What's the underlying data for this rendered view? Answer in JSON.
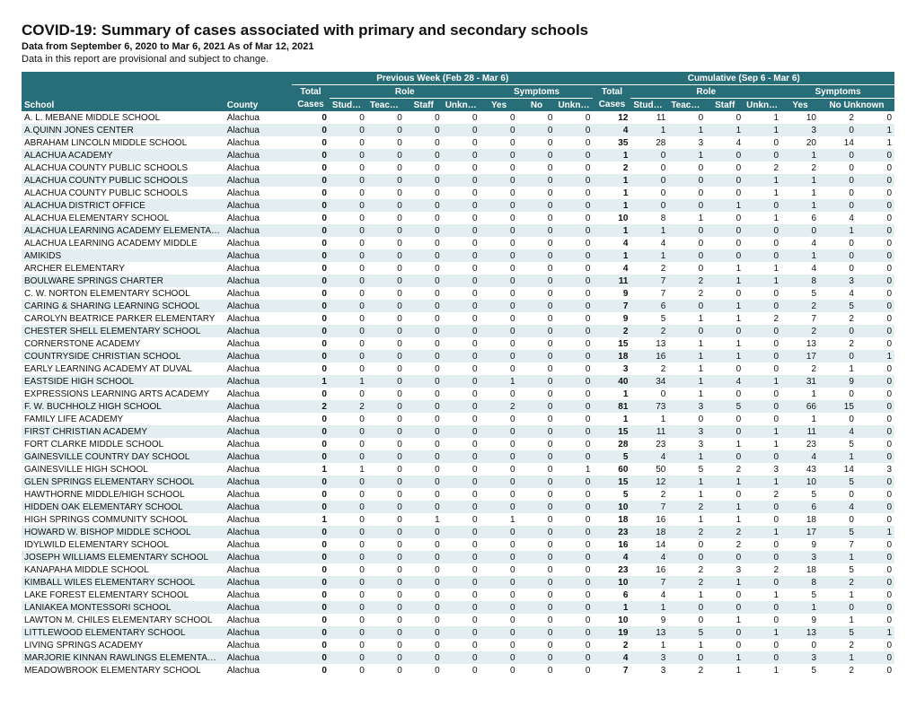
{
  "title": "COVID-19: Summary of cases associated with primary and secondary schools",
  "subtitle_bold": "Data from September 6, 2020 to Mar 6, 2021 As of Mar 12, 2021",
  "subtitle_plain": "Data in this report are provisional and subject to change.",
  "colors": {
    "header_bg": "#276e78",
    "header_fg": "#ffffff",
    "row_even": "#e3eef0",
    "row_odd": "#ffffff"
  },
  "header": {
    "school": "School",
    "county": "County",
    "group_prev": "Previous Week (Feb 28 - Mar 6)",
    "group_cum": "Cumulative (Sep 6 - Mar 6)",
    "total": "Total",
    "role": "Role",
    "symptoms": "Symptoms",
    "cases": "Cases",
    "students": "Students",
    "teachers": "Teachers",
    "staff": "Staff",
    "unknown": "Unknown",
    "yes": "Yes",
    "no": "No",
    "no_unknown": "No Unknown"
  },
  "rows": [
    {
      "s": "A. L. MEBANE MIDDLE SCHOOL",
      "c": "Alachua",
      "p": [
        0,
        0,
        0,
        0,
        0,
        0,
        0,
        0
      ],
      "u": [
        12,
        11,
        0,
        0,
        1,
        10,
        2,
        0
      ]
    },
    {
      "s": "A.QUINN JONES CENTER",
      "c": "Alachua",
      "p": [
        0,
        0,
        0,
        0,
        0,
        0,
        0,
        0
      ],
      "u": [
        4,
        1,
        1,
        1,
        1,
        3,
        0,
        1
      ]
    },
    {
      "s": "ABRAHAM LINCOLN MIDDLE SCHOOL",
      "c": "Alachua",
      "p": [
        0,
        0,
        0,
        0,
        0,
        0,
        0,
        0
      ],
      "u": [
        35,
        28,
        3,
        4,
        0,
        20,
        14,
        1
      ]
    },
    {
      "s": "ALACHUA ACADEMY",
      "c": "Alachua",
      "p": [
        0,
        0,
        0,
        0,
        0,
        0,
        0,
        0
      ],
      "u": [
        1,
        0,
        1,
        0,
        0,
        1,
        0,
        0
      ]
    },
    {
      "s": "ALACHUA COUNTY PUBLIC SCHOOLS",
      "c": "Alachua",
      "p": [
        0,
        0,
        0,
        0,
        0,
        0,
        0,
        0
      ],
      "u": [
        2,
        0,
        0,
        0,
        2,
        2,
        0,
        0
      ]
    },
    {
      "s": "ALACHUA COUNTY PUBLIC SCHOOLS",
      "c": "Alachua",
      "p": [
        0,
        0,
        0,
        0,
        0,
        0,
        0,
        0
      ],
      "u": [
        1,
        0,
        0,
        0,
        1,
        1,
        0,
        0
      ]
    },
    {
      "s": "ALACHUA COUNTY PUBLIC SCHOOLS",
      "c": "Alachua",
      "p": [
        0,
        0,
        0,
        0,
        0,
        0,
        0,
        0
      ],
      "u": [
        1,
        0,
        0,
        0,
        1,
        1,
        0,
        0
      ]
    },
    {
      "s": "ALACHUA DISTRICT OFFICE",
      "c": "Alachua",
      "p": [
        0,
        0,
        0,
        0,
        0,
        0,
        0,
        0
      ],
      "u": [
        1,
        0,
        0,
        1,
        0,
        1,
        0,
        0
      ]
    },
    {
      "s": "ALACHUA ELEMENTARY SCHOOL",
      "c": "Alachua",
      "p": [
        0,
        0,
        0,
        0,
        0,
        0,
        0,
        0
      ],
      "u": [
        10,
        8,
        1,
        0,
        1,
        6,
        4,
        0
      ]
    },
    {
      "s": "ALACHUA LEARNING ACADEMY ELEMENTARY",
      "c": "Alachua",
      "p": [
        0,
        0,
        0,
        0,
        0,
        0,
        0,
        0
      ],
      "u": [
        1,
        1,
        0,
        0,
        0,
        0,
        1,
        0
      ]
    },
    {
      "s": "ALACHUA LEARNING ACADEMY MIDDLE",
      "c": "Alachua",
      "p": [
        0,
        0,
        0,
        0,
        0,
        0,
        0,
        0
      ],
      "u": [
        4,
        4,
        0,
        0,
        0,
        4,
        0,
        0
      ]
    },
    {
      "s": "AMIKIDS",
      "c": "Alachua",
      "p": [
        0,
        0,
        0,
        0,
        0,
        0,
        0,
        0
      ],
      "u": [
        1,
        1,
        0,
        0,
        0,
        1,
        0,
        0
      ]
    },
    {
      "s": "ARCHER ELEMENTARY",
      "c": "Alachua",
      "p": [
        0,
        0,
        0,
        0,
        0,
        0,
        0,
        0
      ],
      "u": [
        4,
        2,
        0,
        1,
        1,
        4,
        0,
        0
      ]
    },
    {
      "s": "BOULWARE SPRINGS CHARTER",
      "c": "Alachua",
      "p": [
        0,
        0,
        0,
        0,
        0,
        0,
        0,
        0
      ],
      "u": [
        11,
        7,
        2,
        1,
        1,
        8,
        3,
        0
      ]
    },
    {
      "s": "C. W. NORTON ELEMENTARY SCHOOL",
      "c": "Alachua",
      "p": [
        0,
        0,
        0,
        0,
        0,
        0,
        0,
        0
      ],
      "u": [
        9,
        7,
        2,
        0,
        0,
        5,
        4,
        0
      ]
    },
    {
      "s": "CARING & SHARING LEARNING SCHOOL",
      "c": "Alachua",
      "p": [
        0,
        0,
        0,
        0,
        0,
        0,
        0,
        0
      ],
      "u": [
        7,
        6,
        0,
        1,
        0,
        2,
        5,
        0
      ]
    },
    {
      "s": "CAROLYN BEATRICE PARKER ELEMENTARY",
      "c": "Alachua",
      "p": [
        0,
        0,
        0,
        0,
        0,
        0,
        0,
        0
      ],
      "u": [
        9,
        5,
        1,
        1,
        2,
        7,
        2,
        0
      ]
    },
    {
      "s": "CHESTER SHELL ELEMENTARY SCHOOL",
      "c": "Alachua",
      "p": [
        0,
        0,
        0,
        0,
        0,
        0,
        0,
        0
      ],
      "u": [
        2,
        2,
        0,
        0,
        0,
        2,
        0,
        0
      ]
    },
    {
      "s": "CORNERSTONE ACADEMY",
      "c": "Alachua",
      "p": [
        0,
        0,
        0,
        0,
        0,
        0,
        0,
        0
      ],
      "u": [
        15,
        13,
        1,
        1,
        0,
        13,
        2,
        0
      ]
    },
    {
      "s": "COUNTRYSIDE CHRISTIAN SCHOOL",
      "c": "Alachua",
      "p": [
        0,
        0,
        0,
        0,
        0,
        0,
        0,
        0
      ],
      "u": [
        18,
        16,
        1,
        1,
        0,
        17,
        0,
        1
      ]
    },
    {
      "s": "EARLY LEARNING ACADEMY AT DUVAL",
      "c": "Alachua",
      "p": [
        0,
        0,
        0,
        0,
        0,
        0,
        0,
        0
      ],
      "u": [
        3,
        2,
        1,
        0,
        0,
        2,
        1,
        0
      ]
    },
    {
      "s": "EASTSIDE HIGH SCHOOL",
      "c": "Alachua",
      "p": [
        1,
        1,
        0,
        0,
        0,
        1,
        0,
        0
      ],
      "u": [
        40,
        34,
        1,
        4,
        1,
        31,
        9,
        0
      ]
    },
    {
      "s": "EXPRESSIONS LEARNING ARTS ACADEMY",
      "c": "Alachua",
      "p": [
        0,
        0,
        0,
        0,
        0,
        0,
        0,
        0
      ],
      "u": [
        1,
        0,
        1,
        0,
        0,
        1,
        0,
        0
      ]
    },
    {
      "s": "F. W. BUCHHOLZ HIGH SCHOOL",
      "c": "Alachua",
      "p": [
        2,
        2,
        0,
        0,
        0,
        2,
        0,
        0
      ],
      "u": [
        81,
        73,
        3,
        5,
        0,
        66,
        15,
        0
      ]
    },
    {
      "s": "FAMILY LIFE ACADEMY",
      "c": "Alachua",
      "p": [
        0,
        0,
        0,
        0,
        0,
        0,
        0,
        0
      ],
      "u": [
        1,
        1,
        0,
        0,
        0,
        1,
        0,
        0
      ]
    },
    {
      "s": "FIRST CHRISTIAN ACADEMY",
      "c": "Alachua",
      "p": [
        0,
        0,
        0,
        0,
        0,
        0,
        0,
        0
      ],
      "u": [
        15,
        11,
        3,
        0,
        1,
        11,
        4,
        0
      ]
    },
    {
      "s": "FORT CLARKE MIDDLE SCHOOL",
      "c": "Alachua",
      "p": [
        0,
        0,
        0,
        0,
        0,
        0,
        0,
        0
      ],
      "u": [
        28,
        23,
        3,
        1,
        1,
        23,
        5,
        0
      ]
    },
    {
      "s": "GAINESVILLE COUNTRY DAY SCHOOL",
      "c": "Alachua",
      "p": [
        0,
        0,
        0,
        0,
        0,
        0,
        0,
        0
      ],
      "u": [
        5,
        4,
        1,
        0,
        0,
        4,
        1,
        0
      ]
    },
    {
      "s": "GAINESVILLE HIGH SCHOOL",
      "c": "Alachua",
      "p": [
        1,
        1,
        0,
        0,
        0,
        0,
        0,
        1
      ],
      "u": [
        60,
        50,
        5,
        2,
        3,
        43,
        14,
        3
      ]
    },
    {
      "s": "GLEN SPRINGS ELEMENTARY SCHOOL",
      "c": "Alachua",
      "p": [
        0,
        0,
        0,
        0,
        0,
        0,
        0,
        0
      ],
      "u": [
        15,
        12,
        1,
        1,
        1,
        10,
        5,
        0
      ]
    },
    {
      "s": "HAWTHORNE MIDDLE/HIGH SCHOOL",
      "c": "Alachua",
      "p": [
        0,
        0,
        0,
        0,
        0,
        0,
        0,
        0
      ],
      "u": [
        5,
        2,
        1,
        0,
        2,
        5,
        0,
        0
      ]
    },
    {
      "s": "HIDDEN OAK ELEMENTARY SCHOOL",
      "c": "Alachua",
      "p": [
        0,
        0,
        0,
        0,
        0,
        0,
        0,
        0
      ],
      "u": [
        10,
        7,
        2,
        1,
        0,
        6,
        4,
        0
      ]
    },
    {
      "s": "HIGH SPRINGS COMMUNITY SCHOOL",
      "c": "Alachua",
      "p": [
        1,
        0,
        0,
        1,
        0,
        1,
        0,
        0
      ],
      "u": [
        18,
        16,
        1,
        1,
        0,
        18,
        0,
        0
      ]
    },
    {
      "s": "HOWARD W. BISHOP MIDDLE SCHOOL",
      "c": "Alachua",
      "p": [
        0,
        0,
        0,
        0,
        0,
        0,
        0,
        0
      ],
      "u": [
        23,
        18,
        2,
        2,
        1,
        17,
        5,
        1
      ]
    },
    {
      "s": "IDYLWILD ELEMENTARY SCHOOL",
      "c": "Alachua",
      "p": [
        0,
        0,
        0,
        0,
        0,
        0,
        0,
        0
      ],
      "u": [
        16,
        14,
        0,
        2,
        0,
        9,
        7,
        0
      ]
    },
    {
      "s": "JOSEPH WILLIAMS ELEMENTARY SCHOOL",
      "c": "Alachua",
      "p": [
        0,
        0,
        0,
        0,
        0,
        0,
        0,
        0
      ],
      "u": [
        4,
        4,
        0,
        0,
        0,
        3,
        1,
        0
      ]
    },
    {
      "s": "KANAPAHA MIDDLE SCHOOL",
      "c": "Alachua",
      "p": [
        0,
        0,
        0,
        0,
        0,
        0,
        0,
        0
      ],
      "u": [
        23,
        16,
        2,
        3,
        2,
        18,
        5,
        0
      ]
    },
    {
      "s": "KIMBALL WILES ELEMENTARY SCHOOL",
      "c": "Alachua",
      "p": [
        0,
        0,
        0,
        0,
        0,
        0,
        0,
        0
      ],
      "u": [
        10,
        7,
        2,
        1,
        0,
        8,
        2,
        0
      ]
    },
    {
      "s": "LAKE FOREST ELEMENTARY SCHOOL",
      "c": "Alachua",
      "p": [
        0,
        0,
        0,
        0,
        0,
        0,
        0,
        0
      ],
      "u": [
        6,
        4,
        1,
        0,
        1,
        5,
        1,
        0
      ]
    },
    {
      "s": "LANIAKEA MONTESSORI SCHOOL",
      "c": "Alachua",
      "p": [
        0,
        0,
        0,
        0,
        0,
        0,
        0,
        0
      ],
      "u": [
        1,
        1,
        0,
        0,
        0,
        1,
        0,
        0
      ]
    },
    {
      "s": "LAWTON M. CHILES ELEMENTARY SCHOOL",
      "c": "Alachua",
      "p": [
        0,
        0,
        0,
        0,
        0,
        0,
        0,
        0
      ],
      "u": [
        10,
        9,
        0,
        1,
        0,
        9,
        1,
        0
      ]
    },
    {
      "s": "LITTLEWOOD ELEMENTARY SCHOOL",
      "c": "Alachua",
      "p": [
        0,
        0,
        0,
        0,
        0,
        0,
        0,
        0
      ],
      "u": [
        19,
        13,
        5,
        0,
        1,
        13,
        5,
        1
      ]
    },
    {
      "s": "LIVING SPRINGS ACADEMY",
      "c": "Alachua",
      "p": [
        0,
        0,
        0,
        0,
        0,
        0,
        0,
        0
      ],
      "u": [
        2,
        1,
        1,
        0,
        0,
        0,
        2,
        0
      ]
    },
    {
      "s": "MARJORIE KINNAN RAWLINGS ELEMENTARY SCHOOL",
      "c": "Alachua",
      "p": [
        0,
        0,
        0,
        0,
        0,
        0,
        0,
        0
      ],
      "u": [
        4,
        3,
        0,
        1,
        0,
        3,
        1,
        0
      ]
    },
    {
      "s": "MEADOWBROOK ELEMENTARY SCHOOL",
      "c": "Alachua",
      "p": [
        0,
        0,
        0,
        0,
        0,
        0,
        0,
        0
      ],
      "u": [
        7,
        3,
        2,
        1,
        1,
        5,
        2,
        0
      ]
    }
  ]
}
